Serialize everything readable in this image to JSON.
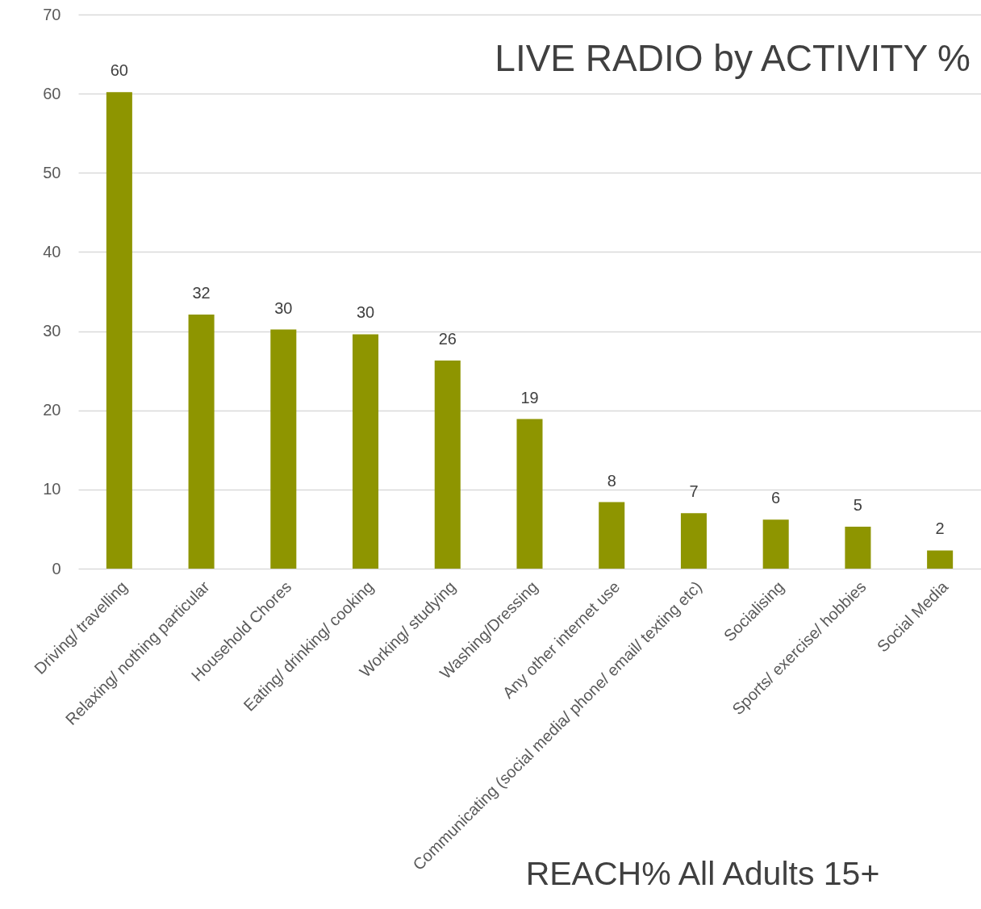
{
  "chart_data": {
    "type": "bar",
    "title": "LIVE RADIO by ACTIVITY %",
    "categories": [
      "Driving/ travelling",
      "Relaxing/ nothing particular",
      "Household Chores",
      "Eating/ drinking/ cooking",
      "Working/ studying",
      "Washing/Dressing",
      "Any other internet use",
      "Communicating (social media/ phone/ email/ texting etc)",
      "Socialising",
      "Sports/ exercise/ hobbies",
      "Social Media"
    ],
    "values": [
      60.2,
      32.1,
      30.2,
      29.6,
      26.3,
      18.9,
      8.4,
      7.0,
      6.2,
      5.3,
      2.3
    ],
    "value_labels": [
      "60",
      "32",
      "30",
      "30",
      "26",
      "19",
      "8",
      "7",
      "6",
      "5",
      "2"
    ],
    "color": "#8e9500",
    "ylim": [
      0,
      70
    ],
    "yticks": [
      0,
      10,
      20,
      30,
      40,
      50,
      60,
      70
    ],
    "grid": "y",
    "annotations": [
      "REACH% All Adults 15+"
    ]
  }
}
